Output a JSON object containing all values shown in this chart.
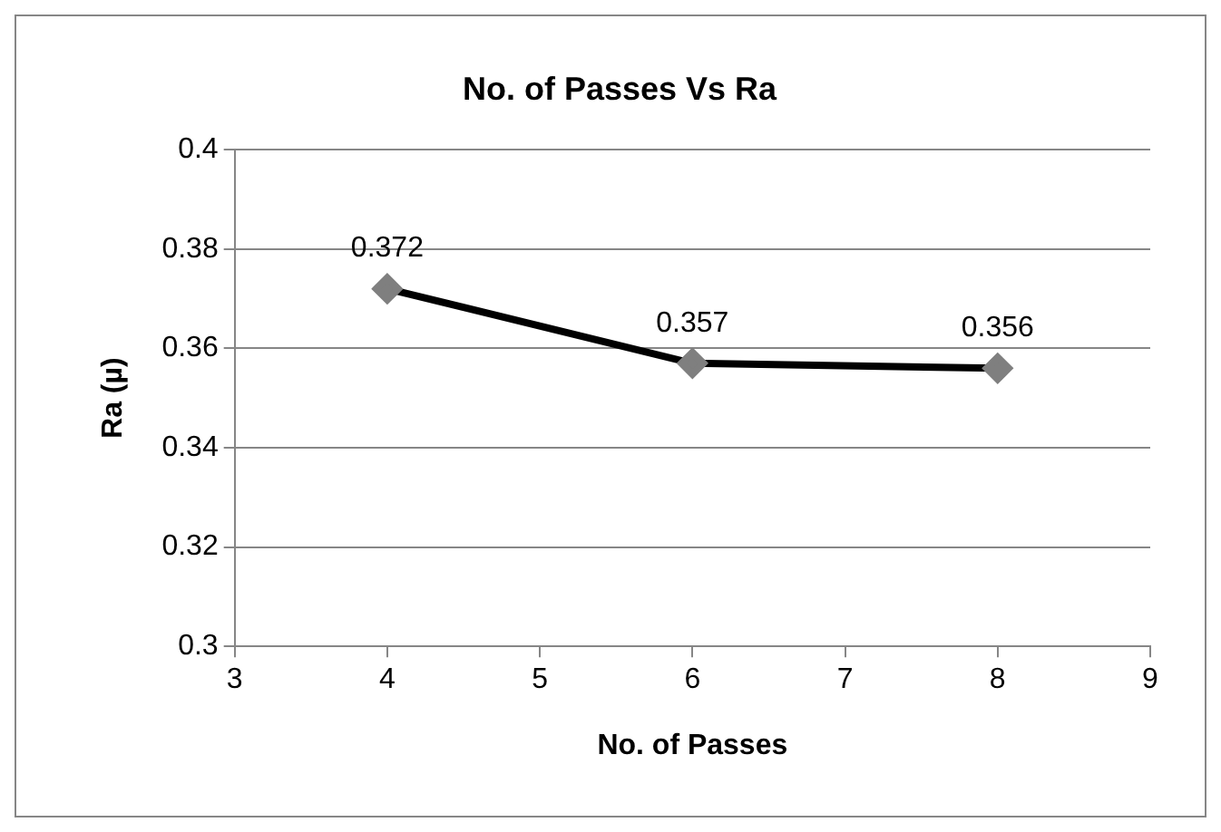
{
  "chart_data": {
    "type": "line",
    "title": "No. of Passes Vs Ra",
    "xlabel": "No. of Passes",
    "ylabel": "Ra (µ)",
    "x": [
      4,
      6,
      8
    ],
    "series": [
      {
        "color": "#000000",
        "values": [
          0.372,
          0.357,
          0.356
        ]
      }
    ],
    "xlim": [
      3,
      9
    ],
    "xticks": [
      3,
      4,
      5,
      6,
      7,
      8,
      9
    ],
    "ylim": [
      0.3,
      0.4
    ],
    "yticks": [
      0.3,
      0.32,
      0.34,
      0.36,
      0.38,
      0.4
    ],
    "grid": "y",
    "legend": false,
    "marker": "diamond",
    "line_style": "solid",
    "data_labels": true
  }
}
